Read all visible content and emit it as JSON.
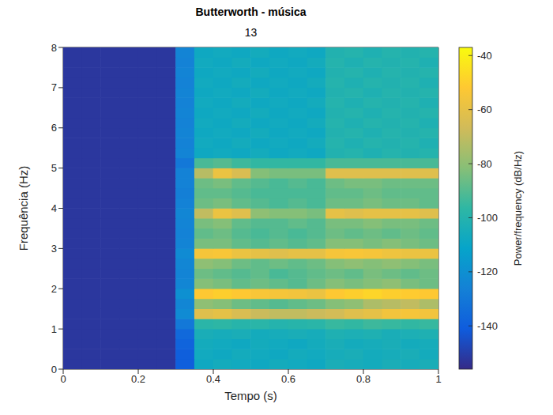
{
  "chart_data": {
    "type": "heatmap",
    "title": "Butterworth - música",
    "subtitle": "13",
    "x_label": "Tempo (s)",
    "y_label": "Frequência (Hz)",
    "xlim": [
      0,
      1
    ],
    "xticks": [
      0,
      0.2,
      0.4,
      0.6,
      0.8,
      1
    ],
    "ylim": [
      0,
      8
    ],
    "yticks": [
      0,
      1,
      2,
      3,
      4,
      5,
      6,
      7,
      8
    ],
    "x": [
      0.025,
      0.075,
      0.125,
      0.175,
      0.225,
      0.275,
      0.325,
      0.375,
      0.425,
      0.475,
      0.525,
      0.575,
      0.625,
      0.675,
      0.725,
      0.775,
      0.825,
      0.875,
      0.925,
      0.975
    ],
    "y": [
      0.125,
      0.375,
      0.625,
      0.875,
      1.125,
      1.375,
      1.625,
      1.875,
      2.125,
      2.375,
      2.625,
      2.875,
      3.125,
      3.375,
      3.625,
      3.875,
      4.125,
      4.375,
      4.625,
      4.875,
      5.125,
      5.375,
      5.625,
      5.875,
      6.125,
      6.375,
      6.625,
      6.875,
      7.125,
      7.375,
      7.625,
      7.875
    ],
    "z": [
      [
        -152,
        -152,
        -152,
        -152,
        -152,
        -152,
        -140,
        -108,
        -106,
        -107,
        -108,
        -106,
        -107,
        -108,
        -104,
        -105,
        -106,
        -104,
        -105,
        -104
      ],
      [
        -152,
        -152,
        -152,
        -152,
        -152,
        -152,
        -140,
        -107,
        -108,
        -106,
        -107,
        -108,
        -106,
        -107,
        -105,
        -104,
        -106,
        -105,
        -104,
        -106
      ],
      [
        -152,
        -152,
        -152,
        -152,
        -152,
        -152,
        -138,
        -106,
        -107,
        -108,
        -106,
        -107,
        -108,
        -106,
        -104,
        -106,
        -105,
        -104,
        -106,
        -105
      ],
      [
        -152,
        -152,
        -152,
        -152,
        -152,
        -152,
        -136,
        -104,
        -105,
        -104,
        -106,
        -105,
        -104,
        -105,
        -102,
        -103,
        -102,
        -104,
        -103,
        -102
      ],
      [
        -152,
        -152,
        -152,
        -152,
        -152,
        -152,
        -130,
        -98,
        -97,
        -99,
        -98,
        -100,
        -99,
        -98,
        -95,
        -96,
        -94,
        -95,
        -96,
        -95
      ],
      [
        -152,
        -152,
        -152,
        -152,
        -152,
        -152,
        -122,
        -62,
        -60,
        -64,
        -68,
        -70,
        -70,
        -68,
        -66,
        -62,
        -60,
        -56,
        -55,
        -56
      ],
      [
        -152,
        -152,
        -152,
        -152,
        -152,
        -152,
        -124,
        -80,
        -82,
        -86,
        -88,
        -90,
        -88,
        -86,
        -82,
        -80,
        -74,
        -72,
        -70,
        -74
      ],
      [
        -152,
        -152,
        -152,
        -152,
        -152,
        -152,
        -120,
        -52,
        -50,
        -52,
        -54,
        -55,
        -56,
        -58,
        -52,
        -50,
        -48,
        -50,
        -51,
        -52
      ],
      [
        -152,
        -152,
        -152,
        -152,
        -152,
        -152,
        -124,
        -82,
        -84,
        -88,
        -86,
        -88,
        -90,
        -86,
        -82,
        -84,
        -82,
        -80,
        -84,
        -86
      ],
      [
        -152,
        -152,
        -152,
        -152,
        -152,
        -152,
        -125,
        -86,
        -88,
        -90,
        -88,
        -92,
        -90,
        -88,
        -86,
        -88,
        -84,
        -86,
        -88,
        -86
      ],
      [
        -152,
        -152,
        -152,
        -152,
        -152,
        -152,
        -124,
        -80,
        -82,
        -86,
        -88,
        -86,
        -88,
        -86,
        -82,
        -80,
        -82,
        -80,
        -82,
        -84
      ],
      [
        -152,
        -152,
        -152,
        -152,
        -152,
        -152,
        -122,
        -55,
        -54,
        -58,
        -60,
        -62,
        -60,
        -60,
        -55,
        -54,
        -55,
        -57,
        -58,
        -58
      ],
      [
        -152,
        -152,
        -152,
        -152,
        -152,
        -152,
        -125,
        -84,
        -84,
        -88,
        -90,
        -88,
        -90,
        -88,
        -82,
        -82,
        -84,
        -82,
        -84,
        -86
      ],
      [
        -152,
        -152,
        -152,
        -152,
        -152,
        -152,
        -126,
        -88,
        -86,
        -90,
        -92,
        -90,
        -92,
        -90,
        -86,
        -88,
        -86,
        -88,
        -86,
        -88
      ],
      [
        -152,
        -152,
        -152,
        -152,
        -152,
        -152,
        -125,
        -84,
        -82,
        -88,
        -90,
        -90,
        -88,
        -90,
        -84,
        -84,
        -82,
        -84,
        -84,
        -86
      ],
      [
        -152,
        -152,
        -152,
        -152,
        -152,
        -152,
        -124,
        -70,
        -58,
        -62,
        -80,
        -82,
        -82,
        -84,
        -60,
        -62,
        -60,
        -60,
        -60,
        -62
      ],
      [
        -152,
        -152,
        -152,
        -152,
        -152,
        -152,
        -126,
        -86,
        -84,
        -88,
        -90,
        -92,
        -90,
        -92,
        -86,
        -86,
        -84,
        -86,
        -86,
        -88
      ],
      [
        -152,
        -152,
        -152,
        -152,
        -152,
        -152,
        -127,
        -88,
        -88,
        -90,
        -92,
        -92,
        -92,
        -92,
        -88,
        -88,
        -86,
        -88,
        -88,
        -88
      ],
      [
        -152,
        -152,
        -152,
        -152,
        -152,
        -152,
        -126,
        -86,
        -84,
        -88,
        -90,
        -92,
        -90,
        -92,
        -86,
        -84,
        -84,
        -86,
        -86,
        -86
      ],
      [
        -152,
        -152,
        -152,
        -152,
        -152,
        -152,
        -126,
        -72,
        -58,
        -64,
        -82,
        -84,
        -84,
        -84,
        -62,
        -62,
        -62,
        -62,
        -62,
        -62
      ],
      [
        -152,
        -152,
        -152,
        -152,
        -152,
        -152,
        -130,
        -92,
        -90,
        -94,
        -96,
        -96,
        -96,
        -96,
        -92,
        -92,
        -92,
        -92,
        -92,
        -92
      ],
      [
        -152,
        -152,
        -152,
        -152,
        -152,
        -152,
        -125,
        -108,
        -107,
        -108,
        -106,
        -108,
        -107,
        -108,
        -101,
        -100,
        -102,
        -100,
        -101,
        -100
      ],
      [
        -152,
        -152,
        -152,
        -152,
        -152,
        -152,
        -126,
        -107,
        -108,
        -106,
        -108,
        -107,
        -108,
        -106,
        -100,
        -102,
        -100,
        -101,
        -100,
        -102
      ],
      [
        -152,
        -152,
        -152,
        -152,
        -152,
        -152,
        -125,
        -108,
        -107,
        -108,
        -106,
        -108,
        -107,
        -108,
        -101,
        -100,
        -102,
        -100,
        -101,
        -100
      ],
      [
        -152,
        -152,
        -152,
        -152,
        -152,
        -152,
        -126,
        -107,
        -108,
        -106,
        -108,
        -107,
        -108,
        -106,
        -100,
        -102,
        -100,
        -101,
        -100,
        -102
      ],
      [
        -152,
        -152,
        -152,
        -152,
        -152,
        -152,
        -125,
        -108,
        -107,
        -108,
        -106,
        -108,
        -107,
        -108,
        -101,
        -100,
        -102,
        -100,
        -101,
        -100
      ],
      [
        -152,
        -152,
        -152,
        -152,
        -152,
        -152,
        -126,
        -107,
        -108,
        -106,
        -108,
        -107,
        -108,
        -106,
        -100,
        -102,
        -100,
        -101,
        -100,
        -102
      ],
      [
        -152,
        -152,
        -152,
        -152,
        -152,
        -152,
        -125,
        -108,
        -107,
        -108,
        -106,
        -108,
        -107,
        -108,
        -101,
        -100,
        -102,
        -100,
        -101,
        -100
      ],
      [
        -152,
        -152,
        -152,
        -152,
        -152,
        -152,
        -126,
        -107,
        -108,
        -106,
        -108,
        -107,
        -108,
        -106,
        -100,
        -102,
        -100,
        -101,
        -100,
        -102
      ],
      [
        -152,
        -152,
        -152,
        -152,
        -152,
        -152,
        -125,
        -108,
        -107,
        -108,
        -106,
        -108,
        -107,
        -108,
        -101,
        -100,
        -102,
        -100,
        -101,
        -100
      ],
      [
        -152,
        -152,
        -152,
        -152,
        -152,
        -152,
        -126,
        -107,
        -108,
        -106,
        -108,
        -107,
        -108,
        -106,
        -100,
        -102,
        -100,
        -101,
        -100,
        -102
      ],
      [
        -152,
        -152,
        -152,
        -152,
        -152,
        -152,
        -125,
        -108,
        -107,
        -108,
        -106,
        -108,
        -107,
        -108,
        -101,
        -100,
        -102,
        -100,
        -101,
        -100
      ]
    ],
    "colorbar_label": "Power/frequency (dB/Hz)",
    "colorbar_range": [
      -156,
      -37
    ],
    "colorbar_ticks": [
      -140,
      -120,
      -100,
      -80,
      -60,
      -40
    ]
  }
}
